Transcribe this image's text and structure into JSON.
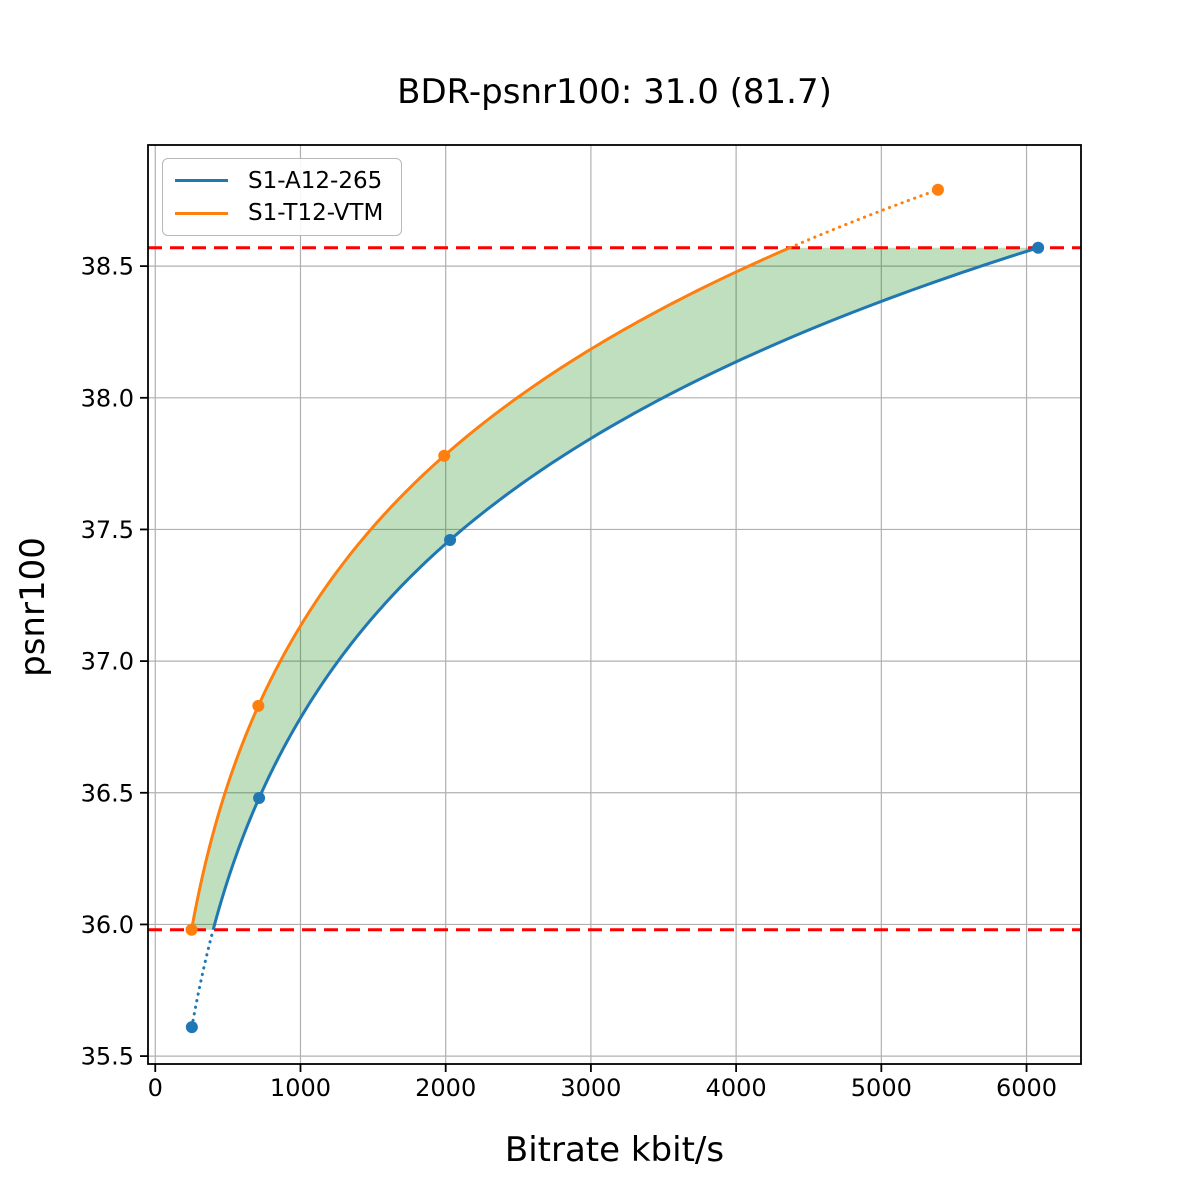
{
  "chart_data": {
    "type": "line",
    "title": "BDR-psnr100: 31.0 (81.7)",
    "grid": true,
    "legend_position": "upper-left",
    "interpolation": "monotone-cubic-on-log10-bitrate",
    "x_axis": {
      "label": "Bitrate kbit/s",
      "range": [
        -50,
        6375
      ],
      "ticks": [
        {
          "value": 0,
          "label": "0"
        },
        {
          "value": 1000,
          "label": "1000"
        },
        {
          "value": 2000,
          "label": "2000"
        },
        {
          "value": 3000,
          "label": "3000"
        },
        {
          "value": 4000,
          "label": "4000"
        },
        {
          "value": 5000,
          "label": "5000"
        },
        {
          "value": 6000,
          "label": "6000"
        }
      ]
    },
    "y_axis": {
      "label": "psnr100",
      "range": [
        35.47,
        38.96
      ],
      "ticks": [
        {
          "value": 35.5,
          "label": "35.5"
        },
        {
          "value": 36.0,
          "label": "36.0"
        },
        {
          "value": 36.5,
          "label": "36.5"
        },
        {
          "value": 37.0,
          "label": "37.0"
        },
        {
          "value": 37.5,
          "label": "37.5"
        },
        {
          "value": 38.0,
          "label": "38.0"
        },
        {
          "value": 38.5,
          "label": "38.5"
        }
      ]
    },
    "series": [
      {
        "name": "S1-A12-265",
        "color": "#1f77b4",
        "points": [
          [
            252,
            35.61
          ],
          [
            715,
            36.48
          ],
          [
            2030,
            37.46
          ],
          [
            6080,
            38.57
          ]
        ],
        "dotted_segment": "below_lower_bound"
      },
      {
        "name": "S1-T12-VTM",
        "color": "#ff7f0e",
        "points": [
          [
            250,
            35.98
          ],
          [
            710,
            36.83
          ],
          [
            1990,
            37.78
          ],
          [
            5390,
            38.79
          ]
        ],
        "dotted_segment": "above_upper_bound"
      }
    ],
    "overlap_band": {
      "lower": 35.98,
      "upper": 38.57,
      "line_color": "#ff0000",
      "line_style": "dashed",
      "fill_color": "#008000",
      "fill_opacity": 0.25
    },
    "colors": {
      "grid": "#b0b0b0",
      "spine": "#000000",
      "background": "#ffffff"
    }
  }
}
